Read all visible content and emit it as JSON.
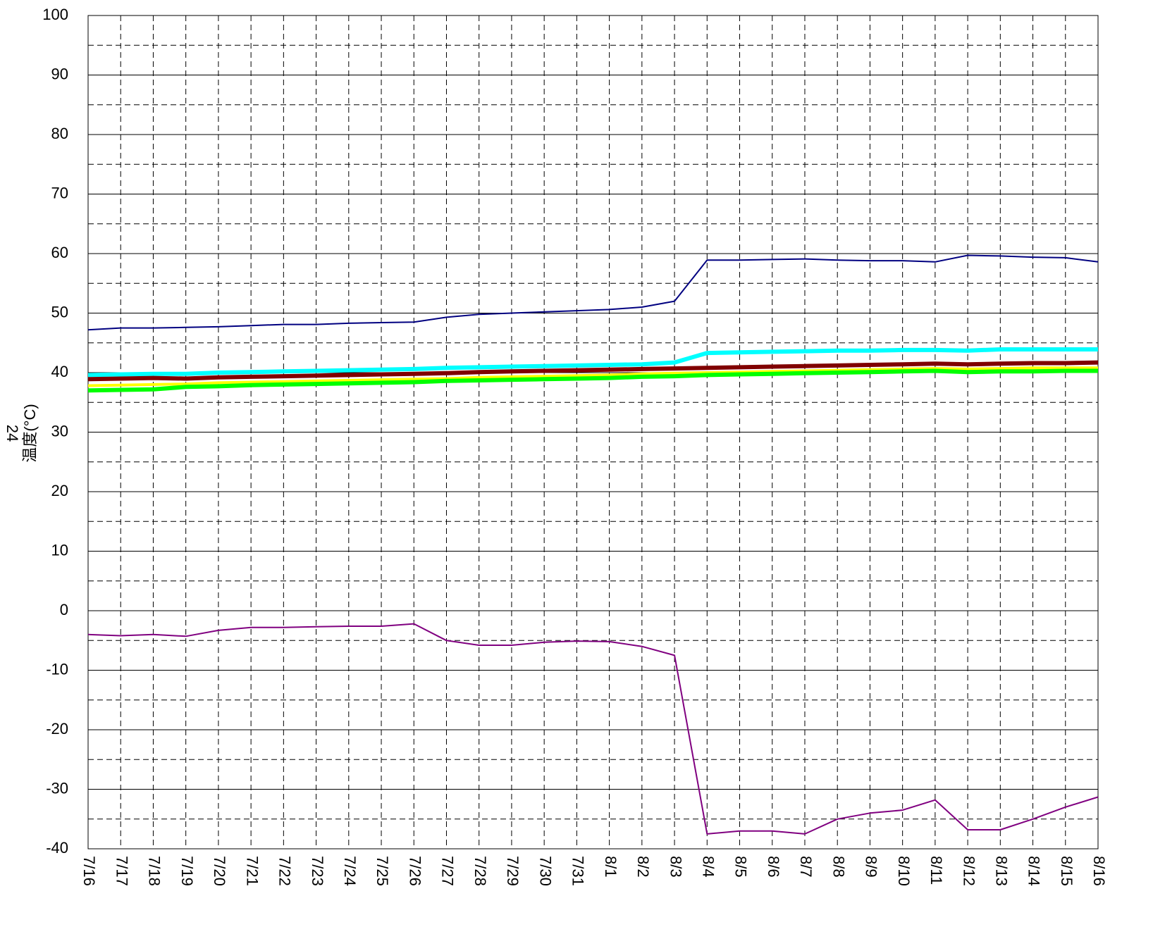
{
  "chart_data": {
    "type": "line",
    "y_label": "温度(°C)",
    "annotation": "24",
    "categories": [
      "7/16",
      "7/17",
      "7/18",
      "7/19",
      "7/20",
      "7/21",
      "7/22",
      "7/23",
      "7/24",
      "7/25",
      "7/26",
      "7/27",
      "7/28",
      "7/29",
      "7/30",
      "7/31",
      "8/1",
      "8/2",
      "8/3",
      "8/4",
      "8/5",
      "8/6",
      "8/7",
      "8/8",
      "8/9",
      "8/10",
      "8/11",
      "8/12",
      "8/13",
      "8/14",
      "8/15",
      "8/16"
    ],
    "ylim": [
      -40,
      100
    ],
    "yticks": [
      -40,
      -30,
      -20,
      -10,
      0,
      10,
      20,
      30,
      40,
      50,
      60,
      70,
      80,
      90,
      100
    ],
    "y_minor_gridlines": [
      -35,
      -25,
      -15,
      -5,
      5,
      15,
      25,
      35,
      45,
      55,
      65,
      75,
      85,
      95
    ],
    "grid": true,
    "series": [
      {
        "color": "#00ffff",
        "width": 6,
        "values": [
          39.6,
          39.7,
          39.8,
          39.8,
          40.0,
          40.1,
          40.2,
          40.3,
          40.4,
          40.5,
          40.6,
          40.8,
          40.9,
          41.0,
          41.1,
          41.2,
          41.3,
          41.4,
          41.7,
          43.3,
          43.4,
          43.5,
          43.6,
          43.7,
          43.7,
          43.8,
          43.8,
          43.7,
          43.9,
          43.9,
          43.9,
          43.9
        ]
      },
      {
        "color": "#ffff00",
        "width": 4,
        "values": [
          37.8,
          37.9,
          38.0,
          38.1,
          38.3,
          38.4,
          38.5,
          38.6,
          38.7,
          38.8,
          38.9,
          39.0,
          39.2,
          39.3,
          39.4,
          39.5,
          39.6,
          39.8,
          39.9,
          40.0,
          40.1,
          40.2,
          40.3,
          40.4,
          40.5,
          40.6,
          40.7,
          40.6,
          40.7,
          40.8,
          40.8,
          40.8
        ]
      },
      {
        "color": "#00ff00",
        "width": 6,
        "values": [
          37.0,
          37.1,
          37.2,
          37.6,
          37.7,
          37.9,
          38.0,
          38.1,
          38.2,
          38.3,
          38.4,
          38.6,
          38.7,
          38.8,
          38.9,
          39.0,
          39.1,
          39.3,
          39.4,
          39.6,
          39.7,
          39.8,
          39.9,
          40.0,
          40.1,
          40.2,
          40.3,
          40.1,
          40.2,
          40.2,
          40.3,
          40.3
        ]
      },
      {
        "color": "#800000",
        "width": 6,
        "values": [
          38.9,
          39.0,
          39.1,
          39.0,
          39.2,
          39.3,
          39.4,
          39.5,
          39.6,
          39.7,
          39.8,
          39.9,
          40.1,
          40.2,
          40.3,
          40.4,
          40.5,
          40.6,
          40.7,
          40.8,
          40.9,
          41.0,
          41.1,
          41.2,
          41.3,
          41.4,
          41.5,
          41.4,
          41.5,
          41.6,
          41.6,
          41.7
        ]
      },
      {
        "color": "#000080",
        "width": 2,
        "values": [
          47.2,
          47.5,
          47.5,
          47.6,
          47.7,
          47.9,
          48.1,
          48.1,
          48.3,
          48.4,
          48.5,
          49.3,
          49.8,
          50.0,
          50.2,
          50.4,
          50.6,
          51.0,
          52.0,
          58.9,
          58.9,
          59.0,
          59.1,
          58.9,
          58.8,
          58.8,
          58.6,
          59.7,
          59.6,
          59.4,
          59.3,
          58.6
        ]
      },
      {
        "color": "#800080",
        "width": 2,
        "values": [
          -4.0,
          -4.2,
          -4.0,
          -4.3,
          -3.3,
          -2.8,
          -2.8,
          -2.7,
          -2.6,
          -2.6,
          -2.2,
          -5.0,
          -5.8,
          -5.8,
          -5.3,
          -5.1,
          -5.2,
          -6.0,
          -7.5,
          -37.5,
          -37.0,
          -37.0,
          -37.5,
          -35.0,
          -34.0,
          -33.5,
          -31.8,
          -36.8,
          -36.8,
          -35.0,
          -33.0,
          -31.3
        ]
      }
    ]
  }
}
